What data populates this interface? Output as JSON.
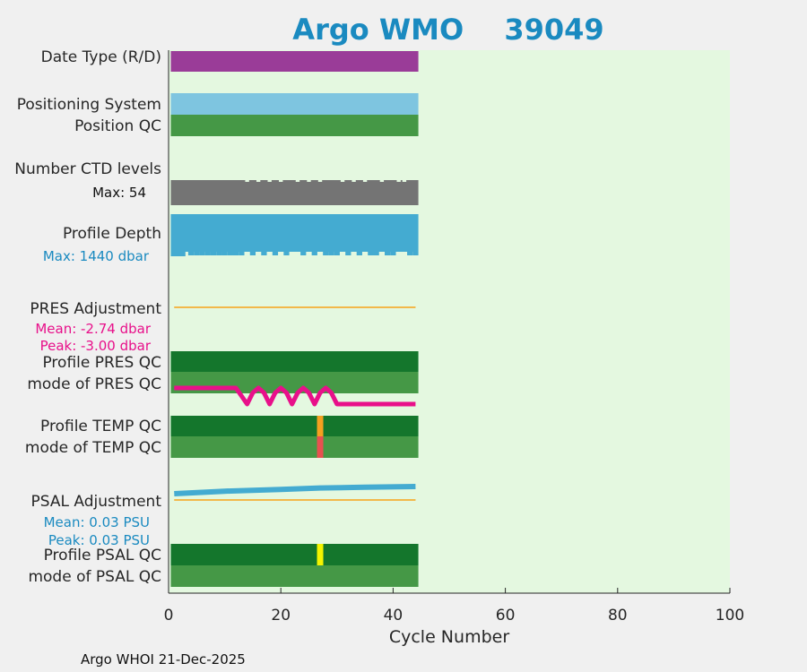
{
  "chart_data": {
    "type": "bar",
    "title_prefix": "Argo WMO",
    "title_id": "39049",
    "xlabel": "Cycle Number",
    "xlim": [
      0,
      100
    ],
    "xticks": [
      0,
      20,
      40,
      60,
      80,
      100
    ],
    "first_cycle": 1,
    "last_cycle": 44,
    "footer": "Argo WHOI 21-Dec-2025",
    "rows": {
      "date_type": "Date Type (R/D)",
      "positioning_system": "Positioning System",
      "position_qc": "Position QC",
      "ctd_levels": "Number CTD levels",
      "profile_depth": "Profile Depth",
      "pres_adjustment": "PRES Adjustment",
      "profile_pres_qc": "Profile PRES QC",
      "mode_pres_qc": "mode of PRES QC",
      "profile_temp_qc": "Profile TEMP QC",
      "mode_temp_qc": "mode of TEMP QC",
      "psal_adjustment": "PSAL Adjustment",
      "profile_psal_qc": "Profile PSAL QC",
      "mode_psal_qc": "mode of PSAL QC"
    },
    "annotations": {
      "ctd_max": "Max: 54",
      "depth_max": "Max: 1440 dbar",
      "pres_mean": "Mean: -2.74 dbar",
      "pres_peak": "Peak: -3.00 dbar",
      "psal_mean": "Mean: 0.03 PSU",
      "psal_peak": "Peak: 0.03 PSU"
    },
    "ctd_gap_cycles": [
      14,
      16,
      18,
      20,
      23,
      25,
      27,
      31,
      33,
      35,
      38,
      41,
      42
    ],
    "depth_short_cycles": [
      1,
      2,
      3,
      14,
      16,
      18,
      20,
      22,
      23,
      25,
      27,
      31,
      33,
      35,
      38,
      41,
      42
    ],
    "pres_qc_mode_points": [
      [
        1,
        0
      ],
      [
        12,
        0
      ],
      [
        13,
        0.5
      ],
      [
        14,
        1
      ],
      [
        15,
        0.3
      ],
      [
        16,
        0
      ],
      [
        17,
        0.3
      ],
      [
        18,
        1
      ],
      [
        19,
        0.3
      ],
      [
        20,
        0
      ],
      [
        21,
        0.3
      ],
      [
        22,
        1
      ],
      [
        23,
        0.3
      ],
      [
        24,
        0
      ],
      [
        25,
        0.3
      ],
      [
        26,
        1
      ],
      [
        27,
        0.3
      ],
      [
        28,
        0
      ],
      [
        29,
        0.3
      ],
      [
        30,
        1
      ],
      [
        31,
        1
      ],
      [
        44,
        1
      ]
    ],
    "temp_qc_flag_cycle": 27,
    "psal_qc_flag_cycle": 27,
    "psal_adjustment_points": [
      [
        1,
        0.0
      ],
      [
        10,
        0.35
      ],
      [
        20,
        0.6
      ],
      [
        27,
        0.8
      ],
      [
        35,
        0.9
      ],
      [
        44,
        1.0
      ]
    ],
    "colors": {
      "plot_bg": "#e4f8e0",
      "date_type": "#9a3c98",
      "positioning": "#7ec5e0",
      "position_qc": "#459846",
      "ctd": "#747474",
      "depth": "#44abd1",
      "pres_line": "#f2b84a",
      "qc_dark": "#14762c",
      "qc_light": "#459846",
      "pres_mode": "#e8108a",
      "temp_flag_orange": "#f5a020",
      "temp_flag_red": "#e85050",
      "psal_flag": "#f4f400",
      "psal_adj": "#44abd1",
      "title": "#1a8ac0",
      "pink_text": "#e8108a",
      "blue_text": "#1a8ac0"
    }
  }
}
